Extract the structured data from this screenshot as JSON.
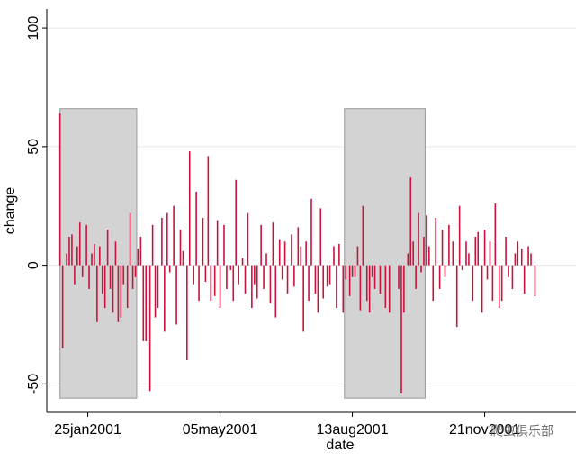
{
  "chart_data": {
    "type": "spike",
    "xlabel": "date",
    "ylabel": "change",
    "xlim": [
      14969,
      15369
    ],
    "ylim": [
      -62,
      108
    ],
    "xticks": [
      {
        "value": 15000,
        "label": "25jan2001"
      },
      {
        "value": 15100,
        "label": "05may2001"
      },
      {
        "value": 15200,
        "label": "13aug2001"
      },
      {
        "value": 15300,
        "label": "21nov2001"
      }
    ],
    "yticks": [
      -50,
      0,
      50,
      100
    ],
    "grid": true,
    "color": "#c8143c",
    "shade_color": "#d3d3d3",
    "shaded_regions": [
      {
        "x": [
          14979,
          15037
        ],
        "y": [
          -56,
          66
        ]
      },
      {
        "x": [
          15194,
          15255
        ],
        "y": [
          -56,
          66
        ]
      }
    ],
    "watermark": "爬虫俱乐部",
    "x": [
      14979,
      14981,
      14984,
      14986,
      14988,
      14990,
      14992,
      14994,
      14996,
      14999,
      15001,
      15003,
      15005,
      15007,
      15009,
      15011,
      15013,
      15015,
      15017,
      15019,
      15021,
      15023,
      15025,
      15027,
      15030,
      15032,
      15034,
      15036,
      15038,
      15040,
      15042,
      15044,
      15047,
      15049,
      15051,
      15053,
      15056,
      15058,
      15060,
      15062,
      15065,
      15067,
      15070,
      15072,
      15075,
      15077,
      15080,
      15082,
      15084,
      15087,
      15089,
      15091,
      15093,
      15096,
      15098,
      15100,
      15103,
      15105,
      15108,
      15110,
      15112,
      15114,
      15117,
      15119,
      15121,
      15124,
      15126,
      15128,
      15131,
      15133,
      15135,
      15138,
      15140,
      15142,
      15145,
      15147,
      15149,
      15151,
      15154,
      15156,
      15159,
      15161,
      15163,
      15165,
      15167,
      15169,
      15172,
      15174,
      15176,
      15178,
      15181,
      15183,
      15186,
      15188,
      15190,
      15193,
      15195,
      15198,
      15200,
      15202,
      15204,
      15206,
      15208,
      15211,
      15213,
      15215,
      15217,
      15221,
      15225,
      15228,
      15235,
      15237,
      15239,
      15242,
      15244,
      15246,
      15248,
      15250,
      15252,
      15254,
      15256,
      15258,
      15261,
      15263,
      15266,
      15268,
      15270,
      15273,
      15276,
      15279,
      15281,
      15283,
      15286,
      15288,
      15291,
      15293,
      15295,
      15298,
      15300,
      15302,
      15304,
      15306,
      15308,
      15311,
      15313,
      15316,
      15318,
      15321,
      15323,
      15325,
      15328,
      15330,
      15333,
      15335,
      15338
    ],
    "values": [
      64,
      -35,
      5,
      12,
      13,
      -8,
      8,
      18,
      -5,
      17,
      -10,
      5,
      9,
      -24,
      8,
      -12,
      -18,
      15,
      -10,
      -20,
      10,
      -24,
      -22,
      -8,
      -18,
      22,
      -10,
      -5,
      7,
      12,
      -32,
      -32,
      -53,
      17,
      -22,
      -18,
      20,
      -28,
      22,
      -3,
      25,
      -25,
      15,
      6,
      -40,
      48,
      -8,
      31,
      -15,
      20,
      -7,
      46,
      -15,
      -13,
      19,
      -18,
      17,
      -10,
      -2,
      -15,
      36,
      -8,
      3,
      -12,
      22,
      -18,
      -8,
      -14,
      17,
      -10,
      5,
      -16,
      18,
      -22,
      11,
      -6,
      10,
      -12,
      13,
      -9,
      16,
      8,
      -28,
      10,
      -15,
      28,
      -12,
      -20,
      24,
      -14,
      -9,
      -8,
      8,
      -18,
      9,
      -20,
      -6,
      -13,
      -5,
      -5,
      8,
      -19,
      25,
      -15,
      -20,
      -5,
      -10,
      -12,
      -18,
      -20,
      -10,
      -54,
      -20,
      5,
      37,
      10,
      -10,
      22,
      -3,
      12,
      21,
      8,
      -15,
      20,
      -10,
      15,
      -5,
      17,
      10,
      -26,
      25,
      -2,
      10,
      5,
      -15,
      12,
      14,
      -20,
      15,
      -6,
      10,
      -15,
      26,
      -18,
      -15,
      12,
      -5,
      -10,
      5,
      10,
      7,
      -12,
      8,
      5,
      -13
    ]
  }
}
